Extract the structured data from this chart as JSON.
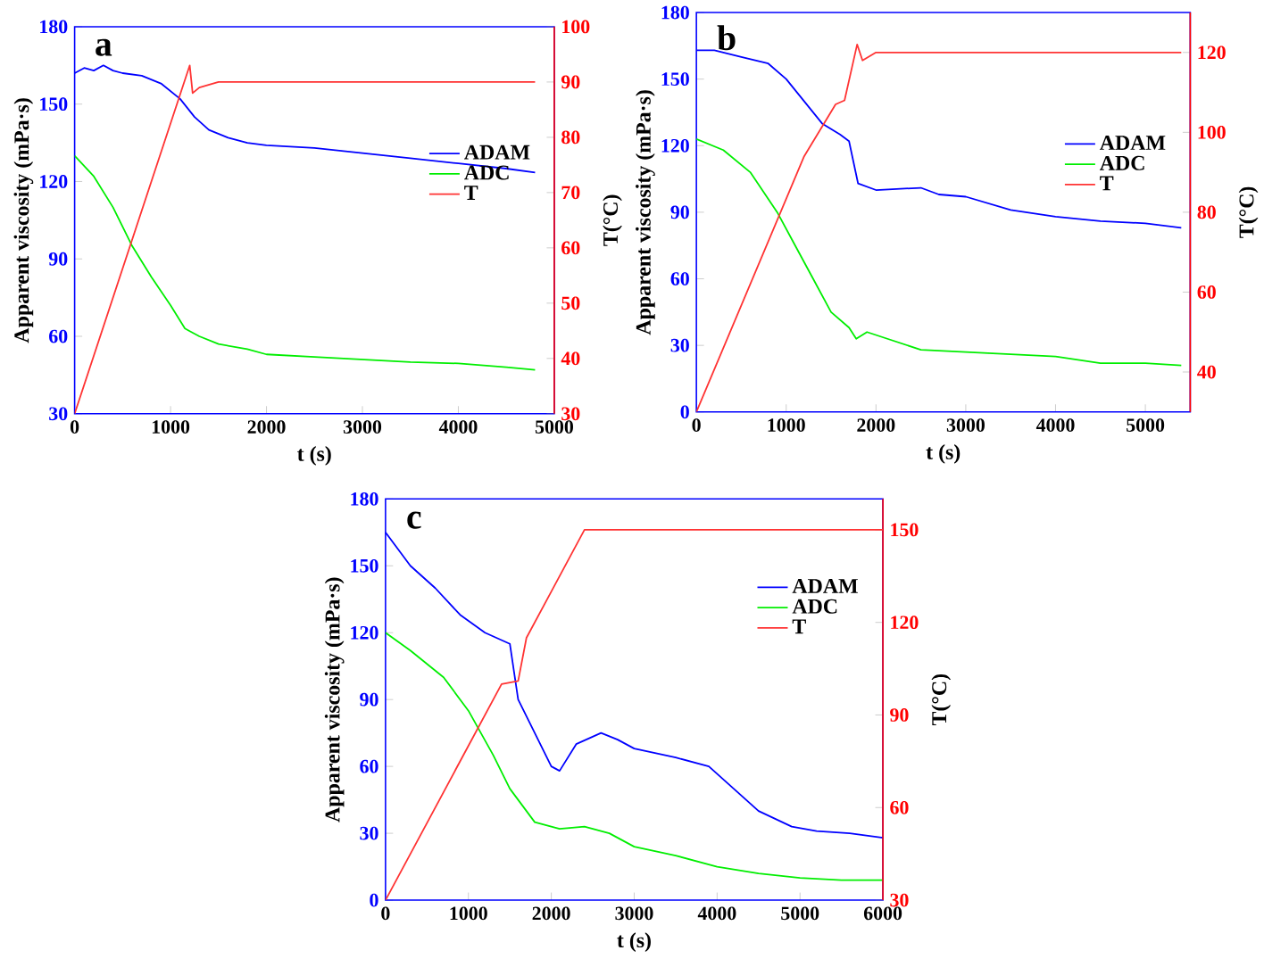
{
  "chart_data": [
    {
      "type": "line",
      "annotations": [
        "a"
      ],
      "xlabel": "t  (s)",
      "ylabel": "Apparent viscosity (mPa·s)",
      "y2label": "T(°C)",
      "legend": "right",
      "xlim": [
        0,
        5000
      ],
      "xticks": [
        0,
        1000,
        2000,
        3000,
        4000,
        5000
      ],
      "ylim": [
        30,
        180
      ],
      "yticks": [
        30,
        60,
        90,
        120,
        150,
        180
      ],
      "y2lim": [
        30,
        100
      ],
      "y2ticks": [
        30,
        40,
        50,
        60,
        70,
        80,
        90,
        100
      ],
      "series": [
        {
          "name": "ADAM",
          "color": "#0000ff",
          "x": [
            0,
            100,
            200,
            300,
            400,
            500,
            700,
            900,
            1100,
            1250,
            1400,
            1600,
            1800,
            2000,
            2500,
            3000,
            3500,
            4000,
            4500,
            4800
          ],
          "values": [
            162,
            164,
            163,
            165,
            163,
            162,
            161,
            158,
            152,
            145,
            140,
            137,
            135,
            134,
            133,
            131,
            129,
            127,
            125,
            123.5
          ]
        },
        {
          "name": "ADC",
          "color": "#00ee00",
          "x": [
            0,
            200,
            400,
            600,
            800,
            1000,
            1150,
            1200,
            1300,
            1500,
            1800,
            2000,
            2500,
            3000,
            3500,
            4000,
            4500,
            4800
          ],
          "values": [
            130,
            122,
            110,
            95,
            83,
            72,
            63,
            62,
            60,
            57,
            55,
            53,
            52,
            51,
            50,
            49.5,
            48,
            47
          ]
        },
        {
          "name": "T",
          "color": "#ff3333",
          "axis": "y2",
          "x": [
            0,
            1200,
            1230,
            1300,
            1500,
            2000,
            3000,
            4000,
            4800
          ],
          "values": [
            30,
            93,
            88,
            89,
            90,
            90,
            90,
            90,
            90
          ]
        }
      ]
    },
    {
      "type": "line",
      "annotations": [
        "b"
      ],
      "xlabel": "t  (s)",
      "ylabel": "Apparent viscosity (mPa·s)",
      "y2label": "T(°C)",
      "legend": "right",
      "xlim": [
        0,
        5500
      ],
      "xticks": [
        0,
        1000,
        2000,
        3000,
        4000,
        5000
      ],
      "ylim": [
        0,
        180
      ],
      "yticks": [
        0,
        30,
        60,
        90,
        120,
        150,
        180
      ],
      "y2lim": [
        30,
        130
      ],
      "y2ticks": [
        40,
        60,
        80,
        100,
        120
      ],
      "series": [
        {
          "name": "ADAM",
          "color": "#0000ff",
          "x": [
            0,
            200,
            500,
            800,
            1000,
            1200,
            1400,
            1600,
            1700,
            1800,
            2000,
            2500,
            2700,
            3000,
            3500,
            4000,
            4500,
            5000,
            5400
          ],
          "values": [
            163,
            163,
            160,
            157,
            150,
            140,
            130,
            125,
            122,
            103,
            100,
            101,
            98,
            97,
            91,
            88,
            86,
            85,
            83
          ]
        },
        {
          "name": "ADC",
          "color": "#00ee00",
          "x": [
            0,
            300,
            600,
            900,
            1100,
            1300,
            1500,
            1700,
            1780,
            1900,
            2200,
            2500,
            3000,
            3500,
            4000,
            4500,
            5000,
            5400
          ],
          "values": [
            123,
            118,
            108,
            90,
            75,
            60,
            45,
            38,
            33,
            36,
            32,
            28,
            27,
            26,
            25,
            22,
            22,
            21
          ]
        },
        {
          "name": "T",
          "color": "#ff3333",
          "axis": "y2",
          "x": [
            0,
            1200,
            1550,
            1650,
            1790,
            1850,
            2000,
            3000,
            4000,
            5400
          ],
          "values": [
            30,
            94,
            107,
            108,
            122,
            118,
            120,
            120,
            120,
            120
          ]
        }
      ]
    },
    {
      "type": "line",
      "annotations": [
        "c"
      ],
      "xlabel": "t  (s)",
      "ylabel": "Apparent viscosity (mPa·s)",
      "y2label": "T(°C)",
      "legend": "top right",
      "xlim": [
        0,
        6000
      ],
      "xticks": [
        0,
        1000,
        2000,
        3000,
        4000,
        5000,
        6000
      ],
      "ylim": [
        0,
        180
      ],
      "yticks": [
        0,
        30,
        60,
        90,
        120,
        150,
        180
      ],
      "y2lim": [
        30,
        160
      ],
      "y2ticks": [
        30,
        60,
        90,
        120,
        150
      ],
      "series": [
        {
          "name": "ADAM",
          "color": "#0000ff",
          "x": [
            0,
            300,
            600,
            900,
            1200,
            1500,
            1600,
            1800,
            2000,
            2100,
            2300,
            2600,
            2800,
            3000,
            3500,
            3900,
            4200,
            4500,
            4900,
            5200,
            5600,
            6000
          ],
          "values": [
            165,
            150,
            140,
            128,
            120,
            115,
            90,
            75,
            60,
            58,
            70,
            75,
            72,
            68,
            64,
            60,
            50,
            40,
            33,
            31,
            30,
            28
          ]
        },
        {
          "name": "ADC",
          "color": "#00ee00",
          "x": [
            0,
            300,
            700,
            1000,
            1300,
            1500,
            1700,
            1800,
            2100,
            2400,
            2700,
            3000,
            3500,
            4000,
            4500,
            5000,
            5500,
            6000
          ],
          "values": [
            120,
            112,
            100,
            85,
            65,
            50,
            40,
            35,
            32,
            33,
            30,
            24,
            20,
            15,
            12,
            10,
            9,
            9
          ]
        },
        {
          "name": "T",
          "color": "#ff3333",
          "axis": "y2",
          "x": [
            0,
            1400,
            1600,
            1700,
            2000,
            2400,
            3000,
            4000,
            5000,
            6000
          ],
          "values": [
            30,
            100,
            101,
            115,
            130,
            150,
            150,
            150,
            150,
            150
          ]
        }
      ]
    }
  ]
}
